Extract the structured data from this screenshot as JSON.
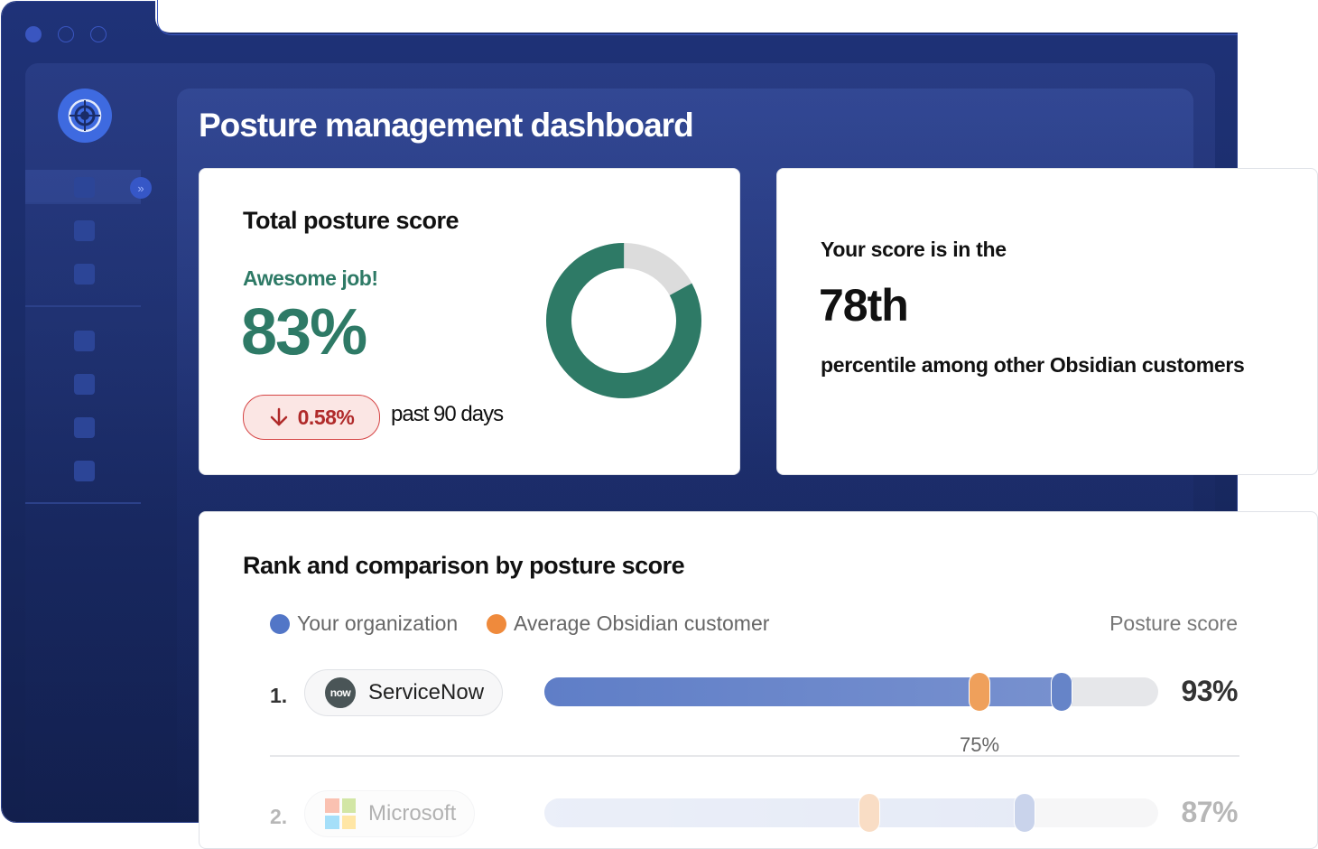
{
  "page": {
    "title": "Posture management dashboard"
  },
  "score_card": {
    "title": "Total posture score",
    "status": "Awesome job!",
    "score_label": "83%",
    "score_value": 0.83,
    "delta_label": "0.58%",
    "delta_direction": "down",
    "period_label": "past 90 days"
  },
  "percentile_card": {
    "lead": "Your score is in the",
    "value": "78th",
    "tail": "percentile among other Obsidian customers"
  },
  "rank_card": {
    "title": "Rank and comparison by posture score",
    "legend": {
      "org_label": "Your organization",
      "avg_label": "Average Obsidian customer"
    },
    "column_header": "Posture score",
    "rows": [
      {
        "rank": "1.",
        "company": "ServiceNow",
        "logo_text": "now",
        "score_label": "93%",
        "score": 0.93,
        "avg_score": 0.75,
        "avg_label": "75%"
      },
      {
        "rank": "2.",
        "company": "Microsoft",
        "score_label": "87%",
        "score": 0.87,
        "avg_score": 0.57
      }
    ]
  },
  "colors": {
    "brand_green": "#2e7a66",
    "org_blue": "#5f7ec7",
    "avg_orange": "#ef8a3c",
    "alert_red": "#d64545",
    "nav_dark": "#1a2c68"
  },
  "icons": {
    "logo": "obsidian-logo-icon",
    "expand": "chevron-double-right-icon",
    "delta": "arrow-down-icon"
  }
}
